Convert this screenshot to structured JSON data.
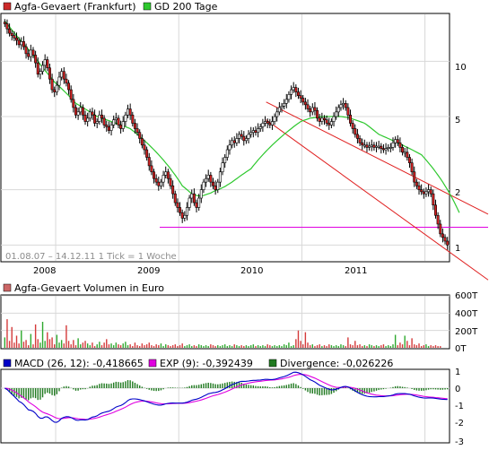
{
  "colors": {
    "panel_border": "#000000",
    "grid": "#d8d8d8",
    "candle_up": "#ffffff",
    "candle_down": "#d42020",
    "candle_outline": "#000000",
    "gd200": "#2ec82e",
    "channel": "#e02020",
    "support": "#e000e0",
    "volume_up": "#2ea82e",
    "volume_down": "#d43a3a",
    "macd": "#0000c8",
    "exp": "#e000e0",
    "divergence": "#207a20",
    "legend_price_swatch": "#cc2a2a",
    "legend_gd_swatch": "#2ec82e",
    "legend_vol_swatch": "#cc6666",
    "legend_macd_swatch": "#0000c8",
    "legend_exp_swatch": "#e000e0",
    "legend_div_swatch": "#207a20"
  },
  "price_panel": {
    "legend": [
      "Agfa-Gevaert (Frankfurt)",
      "GD 200 Tage"
    ],
    "info_text": "01.08.07 – 14.12.11   1 Tick = 1 Woche",
    "y_ticks": [
      "10",
      "5",
      "2",
      "1"
    ],
    "x_ticks": [
      "2008",
      "2009",
      "2010",
      "2011"
    ]
  },
  "volume_panel": {
    "legend": "Agfa-Gevaert Volumen in Euro",
    "y_ticks": [
      "600T",
      "400T",
      "200T",
      "0T"
    ]
  },
  "macd_panel": {
    "legend": [
      "MACD (26, 12): -0,418665",
      "EXP (9): -0,392439",
      "Divergence: -0,026226"
    ],
    "y_ticks": [
      "1",
      "0",
      "-1",
      "-2",
      "-3"
    ]
  },
  "chart_data": {
    "type": "candlestick",
    "period": "weekly",
    "date_range": [
      "01.08.07",
      "14.12.11"
    ],
    "price_scale": "log",
    "price_ylim": [
      0.82,
      18
    ],
    "weekly_close": [
      16.0,
      15.0,
      14.2,
      13.8,
      13.4,
      13.0,
      12.3,
      12.8,
      12.0,
      11.0,
      10.6,
      11.5,
      10.8,
      9.8,
      8.5,
      8.8,
      9.5,
      10.2,
      9.2,
      8.0,
      7.0,
      6.8,
      7.4,
      8.2,
      8.8,
      8.0,
      7.6,
      7.0,
      6.2,
      5.6,
      5.1,
      5.3,
      5.6,
      5.1,
      4.7,
      4.9,
      5.3,
      5.1,
      4.6,
      4.7,
      5.1,
      4.9,
      4.5,
      4.4,
      4.2,
      4.5,
      4.8,
      4.9,
      4.5,
      4.3,
      4.7,
      5.1,
      5.5,
      5.1,
      4.6,
      4.3,
      4.1,
      3.8,
      3.5,
      3.3,
      3.0,
      2.7,
      2.5,
      2.3,
      2.2,
      2.1,
      2.2,
      2.4,
      2.5,
      2.3,
      2.1,
      1.9,
      1.7,
      1.6,
      1.5,
      1.4,
      1.45,
      1.6,
      1.8,
      1.9,
      1.7,
      1.6,
      1.8,
      2.0,
      2.2,
      2.3,
      2.4,
      2.2,
      2.1,
      2.0,
      2.2,
      2.5,
      2.8,
      3.0,
      3.3,
      3.5,
      3.7,
      3.6,
      3.8,
      4.0,
      3.9,
      3.7,
      3.8,
      4.0,
      4.1,
      4.2,
      4.1,
      4.3,
      4.4,
      4.6,
      4.7,
      4.6,
      4.5,
      4.7,
      5.0,
      5.3,
      5.6,
      5.7,
      5.9,
      6.2,
      6.6,
      7.0,
      7.2,
      6.8,
      6.5,
      6.3,
      6.0,
      5.8,
      5.5,
      5.3,
      5.6,
      5.4,
      4.9,
      4.7,
      4.9,
      4.8,
      4.6,
      4.5,
      4.7,
      5.0,
      5.3,
      5.6,
      5.8,
      5.9,
      5.6,
      5.1,
      4.6,
      4.3,
      4.0,
      3.8,
      3.6,
      3.5,
      3.5,
      3.4,
      3.45,
      3.5,
      3.4,
      3.45,
      3.45,
      3.35,
      3.3,
      3.35,
      3.4,
      3.4,
      3.6,
      3.75,
      3.6,
      3.4,
      3.2,
      3.2,
      3.0,
      2.8,
      2.5,
      2.2,
      2.1,
      2.0,
      1.95,
      1.9,
      1.95,
      2.0,
      1.9,
      1.65,
      1.45,
      1.3,
      1.15,
      1.1,
      1.05,
      1.0
    ],
    "gd200_approx": [
      16.5,
      16.0,
      15.4,
      14.8,
      14.3,
      13.8,
      13.3,
      12.8,
      12.4,
      12.0,
      11.6,
      11.2,
      10.8,
      10.4,
      10.0,
      9.6,
      9.2,
      8.9,
      8.6,
      8.3,
      8.0,
      7.7,
      7.5,
      7.3,
      7.1,
      6.9,
      6.7,
      6.5,
      6.3,
      6.1,
      5.9,
      5.8,
      5.7,
      5.6,
      5.5,
      5.4,
      5.3,
      5.2,
      5.1,
      5.0,
      4.95,
      4.9,
      4.85,
      4.8,
      4.75,
      4.7,
      4.65,
      4.6,
      4.55,
      4.5,
      4.45,
      4.4,
      4.35,
      4.3,
      4.2,
      4.1,
      4.0,
      3.9,
      3.8,
      3.7,
      3.6,
      3.5,
      3.4,
      3.3,
      3.2,
      3.1,
      3.0,
      2.9,
      2.8,
      2.7,
      2.6,
      2.5,
      2.4,
      2.3,
      2.2,
      2.1,
      2.05,
      2.0,
      1.95,
      1.9,
      1.88,
      1.86,
      1.85,
      1.85,
      1.86,
      1.88,
      1.9,
      1.92,
      1.95,
      1.98,
      2.0,
      2.02,
      2.05,
      2.08,
      2.12,
      2.16,
      2.2,
      2.25,
      2.3,
      2.35,
      2.4,
      2.45,
      2.5,
      2.55,
      2.6,
      2.7,
      2.8,
      2.9,
      3.0,
      3.1,
      3.2,
      3.3,
      3.4,
      3.5,
      3.6,
      3.7,
      3.8,
      3.9,
      4.0,
      4.1,
      4.2,
      4.3,
      4.4,
      4.5,
      4.6,
      4.7,
      4.75,
      4.8,
      4.85,
      4.9,
      4.92,
      4.94,
      4.96,
      4.98,
      5.0,
      5.0,
      5.0,
      5.0,
      5.0,
      5.0,
      5.0,
      5.0,
      5.0,
      4.98,
      4.96,
      4.94,
      4.9,
      4.85,
      4.8,
      4.75,
      4.7,
      4.65,
      4.6,
      4.5,
      4.4,
      4.3,
      4.2,
      4.1,
      4.0,
      3.95,
      3.9,
      3.85,
      3.8,
      3.75,
      3.7,
      3.65,
      3.6,
      3.55,
      3.5,
      3.45,
      3.4,
      3.35,
      3.3,
      3.25,
      3.2,
      3.15,
      3.1,
      3.0,
      2.9,
      2.8,
      2.7,
      2.6,
      2.5,
      2.4,
      2.3,
      2.2,
      2.1,
      2.0,
      1.9,
      1.8,
      1.7,
      1.6,
      1.5
    ],
    "support_level": 1.25,
    "trend_channel": {
      "upper": {
        "from": [
          0.59,
          6.0
        ],
        "to": [
          0.98,
          2.0
        ]
      },
      "lower": {
        "from": [
          0.59,
          4.8
        ],
        "to": [
          0.98,
          1.0
        ]
      }
    },
    "volume_ylim": [
      0,
      600
    ],
    "volume_unit": "T Euro",
    "volume_weekly_approx": [
      120,
      330,
      80,
      240,
      60,
      140,
      50,
      200,
      70,
      90,
      30,
      160,
      40,
      270,
      100,
      60,
      300,
      80,
      180,
      100,
      120,
      40,
      150,
      60,
      90,
      50,
      260,
      80,
      40,
      90,
      30,
      110,
      40,
      60,
      80,
      50,
      30,
      60,
      20,
      40,
      70,
      30,
      60,
      100,
      40,
      50,
      30,
      60,
      40,
      30,
      50,
      70,
      30,
      40,
      20,
      60,
      30,
      20,
      50,
      30,
      40,
      60,
      30,
      20,
      40,
      30,
      50,
      20,
      40,
      30,
      20,
      30,
      40,
      20,
      30,
      50,
      20,
      30,
      40,
      20,
      30,
      20,
      40,
      30,
      20,
      30,
      20,
      40,
      30,
      20,
      30,
      20,
      30,
      40,
      20,
      30,
      20,
      40,
      30,
      20,
      30,
      20,
      30,
      20,
      30,
      40,
      20,
      30,
      20,
      30,
      20,
      40,
      30,
      20,
      30,
      20,
      30,
      20,
      40,
      30,
      60,
      20,
      30,
      100,
      200,
      80,
      40,
      180,
      60,
      30,
      40,
      20,
      30,
      40,
      20,
      30,
      20,
      40,
      30,
      20,
      30,
      20,
      40,
      30,
      20,
      120,
      40,
      30,
      80,
      30,
      40,
      20,
      30,
      20,
      40,
      30,
      20,
      30,
      20,
      30,
      40,
      20,
      30,
      20,
      40,
      150,
      30,
      60,
      40,
      140,
      80,
      30,
      110,
      40,
      30,
      50,
      20,
      30,
      40,
      20,
      30,
      20,
      30,
      20,
      20
    ],
    "macd_ylim": [
      -3,
      1
    ],
    "macd_latest": -0.418665,
    "exp_latest": -0.392439,
    "divergence_latest": -0.026226
  }
}
